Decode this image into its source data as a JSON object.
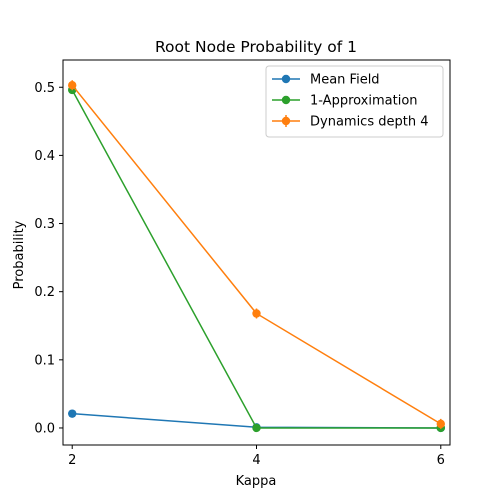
{
  "chart_data": {
    "type": "line",
    "title": "Root Node Probability of 1",
    "xlabel": "Kappa",
    "ylabel": "Probability",
    "x": [
      2,
      4,
      6
    ],
    "xticks": [
      2,
      4,
      6
    ],
    "xtick_labels": [
      "2",
      "4",
      "6"
    ],
    "xlim": [
      1.9,
      6.1
    ],
    "yticks": [
      0.0,
      0.1,
      0.2,
      0.3,
      0.4,
      0.5
    ],
    "ytick_labels": [
      "0.0",
      "0.1",
      "0.2",
      "0.3",
      "0.4",
      "0.5"
    ],
    "ylim": [
      -0.025,
      0.54
    ],
    "grid": false,
    "legend_position": "top-right",
    "series": [
      {
        "name": "Mean Field",
        "values": [
          0.021,
          0.001,
          0.0
        ],
        "color": "#1f77b4",
        "marker": "circle"
      },
      {
        "name": "1-Approximation",
        "values": [
          0.496,
          0.0,
          0.0
        ],
        "color": "#2ca02c",
        "marker": "circle"
      },
      {
        "name": "Dynamics depth 4",
        "values": [
          0.503,
          0.168,
          0.006
        ],
        "color": "#ff7f0e",
        "marker": "circle",
        "error_bars": true
      }
    ]
  }
}
